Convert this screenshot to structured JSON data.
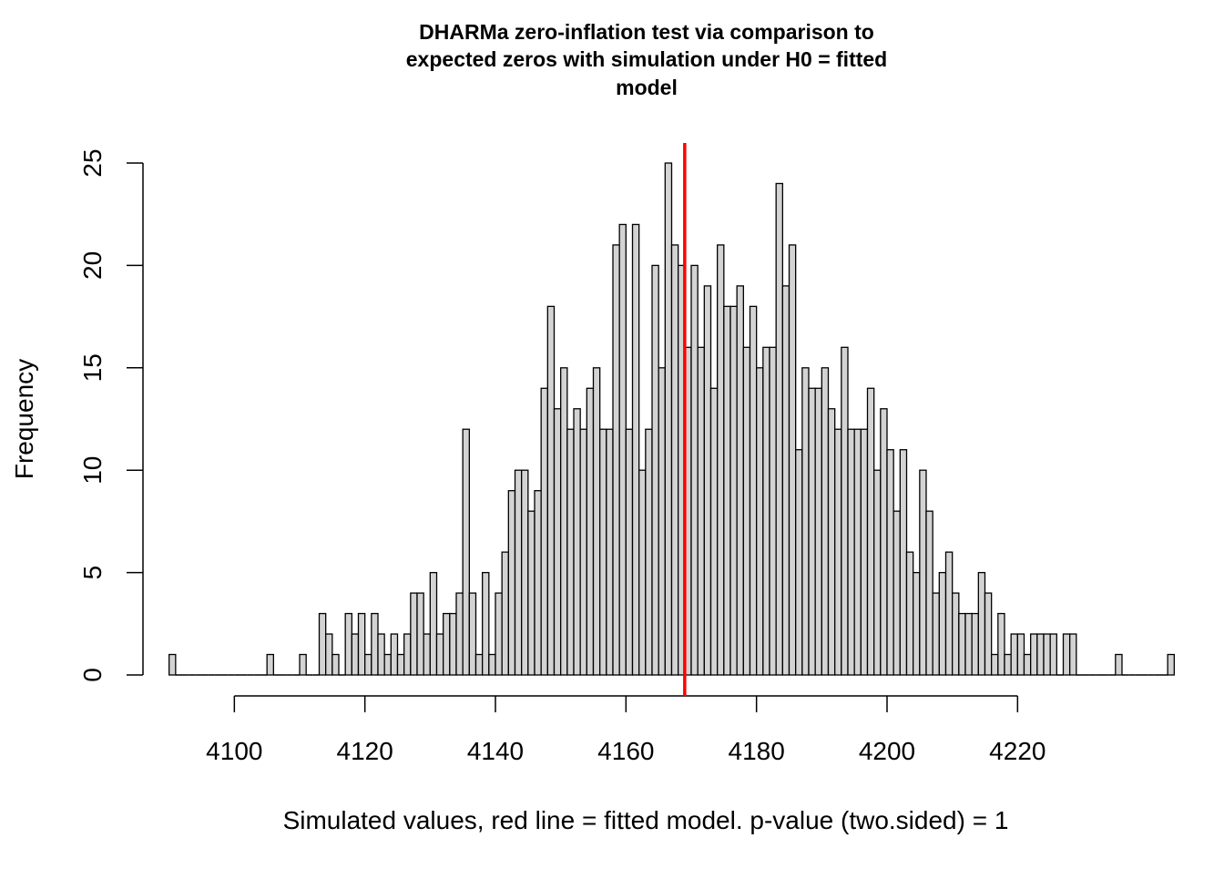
{
  "chart_data": {
    "type": "bar",
    "title_lines": [
      "DHARMa zero-inflation test via comparison to",
      "expected zeros with simulation under H0 = fitted",
      "model"
    ],
    "xlabel": "Simulated values, red line = fitted model. p-value (two.sided) = 1",
    "ylabel": "Frequency",
    "xlim": [
      4086,
      4236
    ],
    "ylim": [
      0,
      25
    ],
    "x_ticks": [
      "4100",
      "4120",
      "4140",
      "4160",
      "4180",
      "4200",
      "4220"
    ],
    "y_ticks": [
      "0",
      "5",
      "10",
      "15",
      "20",
      "25"
    ],
    "bin_start": 4090,
    "bin_width": 1,
    "counts": [
      1,
      0,
      0,
      0,
      0,
      0,
      0,
      0,
      0,
      0,
      0,
      0,
      0,
      0,
      0,
      1,
      0,
      0,
      0,
      0,
      1,
      0,
      0,
      3,
      2,
      1,
      0,
      3,
      2,
      3,
      1,
      3,
      2,
      1,
      2,
      1,
      2,
      4,
      4,
      2,
      5,
      2,
      3,
      3,
      4,
      12,
      4,
      1,
      5,
      1,
      4,
      6,
      9,
      10,
      10,
      8,
      9,
      14,
      18,
      13,
      15,
      12,
      13,
      12,
      14,
      15,
      12,
      12,
      21,
      22,
      12,
      22,
      10,
      12,
      20,
      15,
      25,
      21,
      20,
      16,
      20,
      16,
      19,
      14,
      21,
      18,
      18,
      19,
      16,
      18,
      15,
      16,
      16,
      24,
      19,
      21,
      11,
      15,
      14,
      14,
      15,
      13,
      12,
      16,
      12,
      12,
      12,
      14,
      10,
      13,
      11,
      8,
      11,
      6,
      5,
      10,
      8,
      4,
      5,
      6,
      4,
      3,
      3,
      3,
      5,
      4,
      1,
      3,
      1,
      2,
      2,
      1,
      2,
      2,
      2,
      2,
      0,
      2,
      2,
      0,
      0,
      0,
      0,
      0,
      0,
      1,
      0,
      0,
      0,
      0,
      0,
      0,
      0,
      1
    ],
    "bar_fill": "#d3d3d3",
    "bar_stroke": "#000000",
    "reference_line": {
      "x": 4169,
      "color": "#ff0000"
    }
  }
}
